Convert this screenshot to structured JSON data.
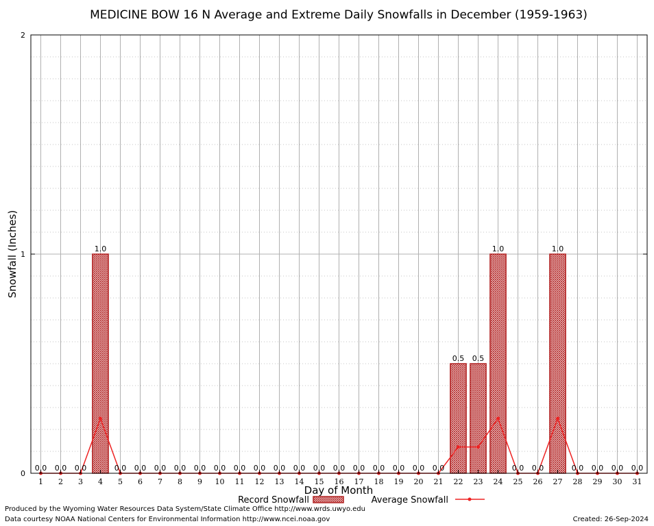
{
  "chart_data": {
    "type": "bar",
    "title": "MEDICINE BOW 16 N Average and Extreme Daily Snowfalls in December (1959-1963)",
    "xlabel": "Day of Month",
    "ylabel": "Snowfall (Inches)",
    "ylim": [
      0,
      2
    ],
    "yticks": [
      "0",
      "1",
      "2"
    ],
    "categories": [
      "1",
      "2",
      "3",
      "4",
      "5",
      "6",
      "7",
      "8",
      "9",
      "10",
      "11",
      "12",
      "13",
      "14",
      "15",
      "16",
      "17",
      "18",
      "19",
      "20",
      "21",
      "22",
      "23",
      "24",
      "25",
      "26",
      "27",
      "28",
      "29",
      "30",
      "31"
    ],
    "series": [
      {
        "name": "Record Snowfall",
        "type": "bar",
        "color": "#b22222",
        "values": [
          0,
          0,
          0,
          1.0,
          0,
          0,
          0,
          0,
          0,
          0,
          0,
          0,
          0,
          0,
          0,
          0,
          0,
          0,
          0,
          0,
          0,
          0.5,
          0.5,
          1.0,
          0,
          0,
          1.0,
          0,
          0,
          0,
          0
        ],
        "labels": [
          "0.0",
          "0.0",
          "0.0",
          "1.0",
          "0.0",
          "0.0",
          "0.0",
          "0.0",
          "0.0",
          "0.0",
          "0.0",
          "0.0",
          "0.0",
          "0.0",
          "0.0",
          "0.0",
          "0.0",
          "0.0",
          "0.0",
          "0.0",
          "0.0",
          "0.5",
          "0.5",
          "1.0",
          "0.0",
          "0.0",
          "1.0",
          "0.0",
          "0.0",
          "0.0",
          "0.0"
        ]
      },
      {
        "name": "Average Snowfall",
        "type": "line",
        "color": "#ee2222",
        "values": [
          0,
          0,
          0,
          0.25,
          0,
          0,
          0,
          0,
          0,
          0,
          0,
          0,
          0,
          0,
          0,
          0,
          0,
          0,
          0,
          0,
          0,
          0.12,
          0.12,
          0.25,
          0,
          0,
          0.25,
          0,
          0,
          0,
          0
        ]
      }
    ],
    "grid": true,
    "legend": "bottom-center"
  },
  "footer": {
    "produced_by": "Produced by the Wyoming Water Resources Data System/State Climate Office http://www.wrds.uwyo.edu",
    "data_courtesy": "Data courtesy NOAA National Centers for Environmental Information http://www.ncei.noaa.gov",
    "created": "Created: 26-Sep-2024"
  }
}
